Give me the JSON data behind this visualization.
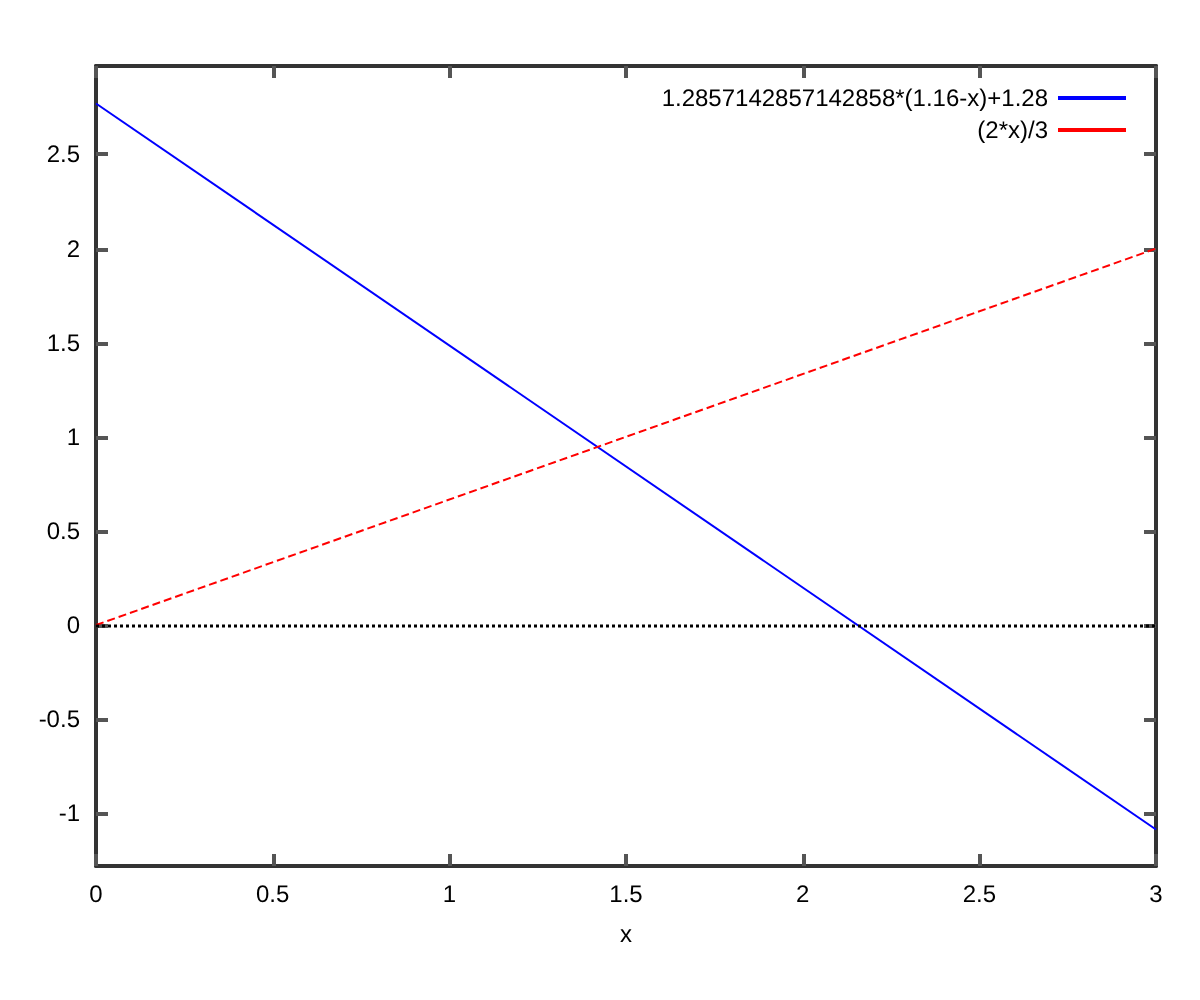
{
  "chart_data": {
    "type": "line",
    "xlabel": "x",
    "x": [
      0,
      3
    ],
    "series": [
      {
        "name": "1.2857142857142858*(1.16-x)+1.28",
        "color": "#0000ff",
        "values": [
          2.771,
          -1.086
        ],
        "line_style": "solid"
      },
      {
        "name": "(2*x)/3",
        "color": "#ff0000",
        "values": [
          0,
          2
        ],
        "line_style": "dashed"
      }
    ],
    "xlim": [
      0,
      3
    ],
    "ylim": [
      -1.28,
      2.97
    ],
    "xticks": [
      0,
      0.5,
      1,
      1.5,
      2,
      2.5,
      3
    ],
    "yticks": [
      -1,
      -0.5,
      0,
      0.5,
      1,
      1.5,
      2,
      2.5
    ],
    "ref_lines": [
      {
        "axis": "y",
        "value": 0,
        "color": "#000000",
        "line_style": "dotted"
      }
    ],
    "grid": false,
    "legend": "top right",
    "marker": "none"
  }
}
